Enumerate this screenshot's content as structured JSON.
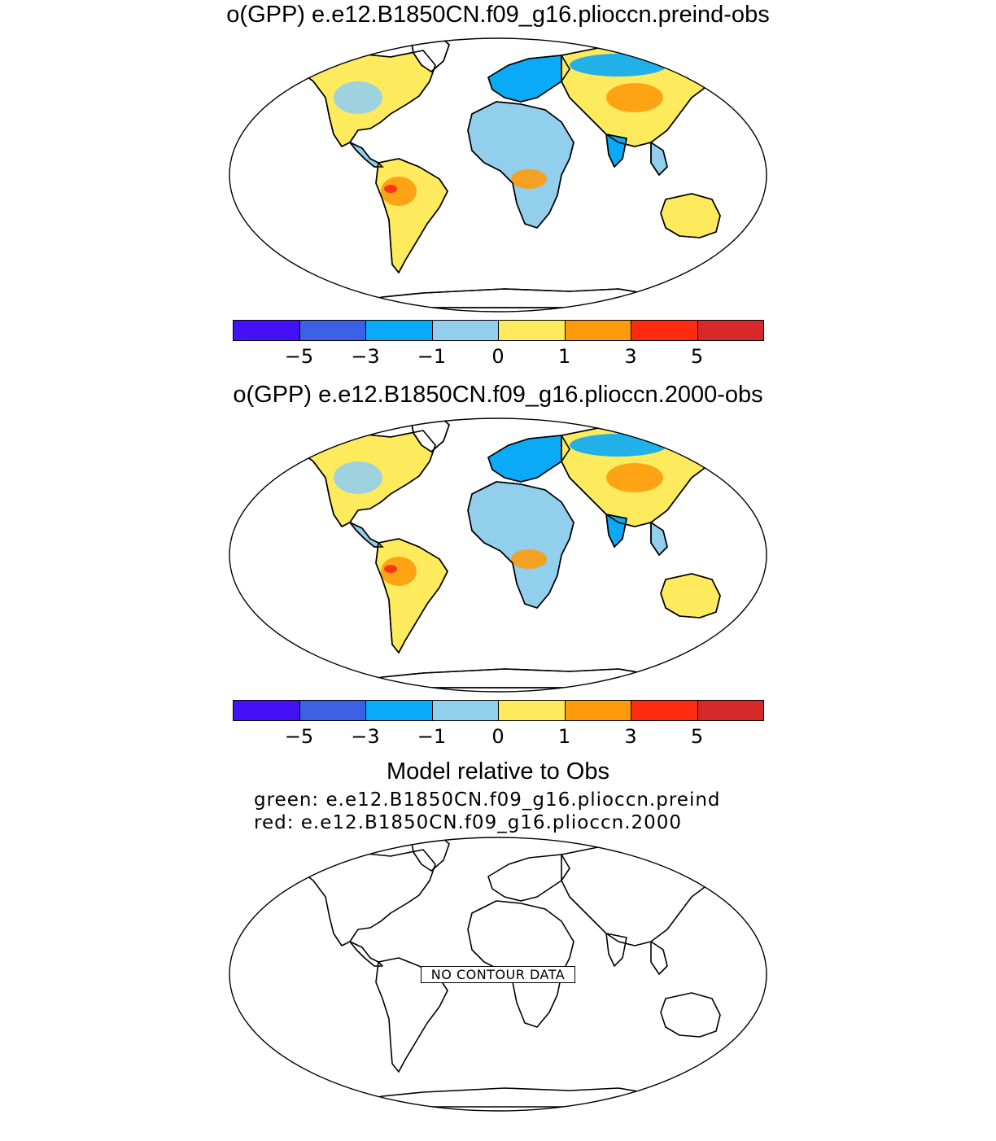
{
  "panels": [
    {
      "title": "o(GPP) e.e12.B1850CN.f09_g16.plioccn.preind-obs"
    },
    {
      "title": "o(GPP) e.e12.B1850CN.f09_g16.plioccn.2000-obs"
    },
    {
      "title": "Model relative to Obs",
      "legend_green": "green: e.e12.B1850CN.f09_g16.plioccn.preind",
      "legend_red": "red: e.e12.B1850CN.f09_g16.plioccn.2000",
      "no_data_label": "NO CONTOUR DATA"
    }
  ],
  "colorbar": {
    "colors": [
      "#4410f5",
      "#3d61e4",
      "#0aaaf7",
      "#92cfec",
      "#fdeb5d",
      "#fd9b0c",
      "#fe2a12",
      "#d7282a"
    ],
    "labels": [
      "−5",
      "−3",
      "−1",
      "0",
      "1",
      "3",
      "5"
    ]
  },
  "land_color_palette": {
    "light_blue": "#92cfec",
    "blue": "#0aaaf7",
    "yellow": "#fdeb5d",
    "orange": "#fd9b0c",
    "red": "#fe2a12"
  }
}
